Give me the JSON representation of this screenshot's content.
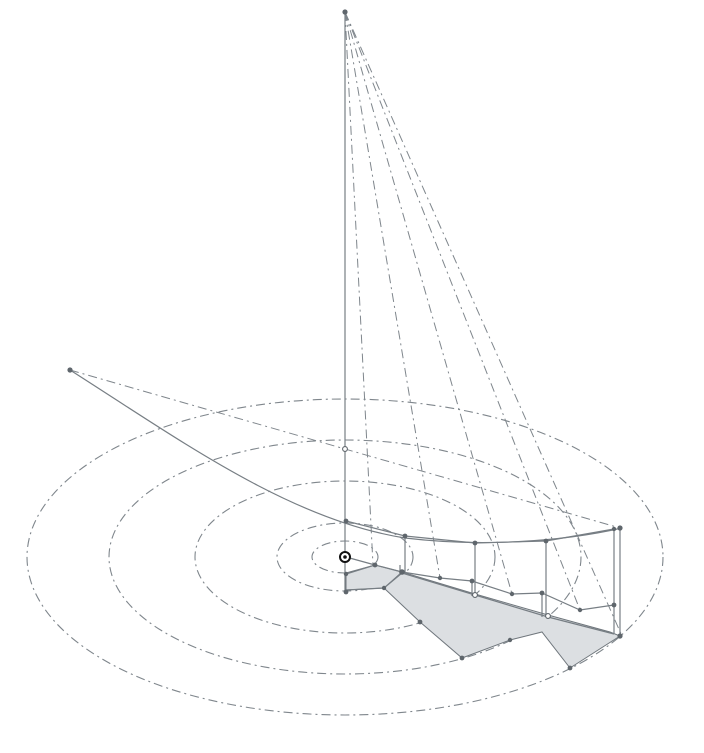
{
  "diagram": {
    "colors": {
      "line": "#777e84",
      "dash": "#7f868c",
      "shade": "#dcdfe2",
      "point": "#5f666c",
      "origin": "#111111"
    },
    "icons": [
      "origin-target-icon"
    ]
  }
}
